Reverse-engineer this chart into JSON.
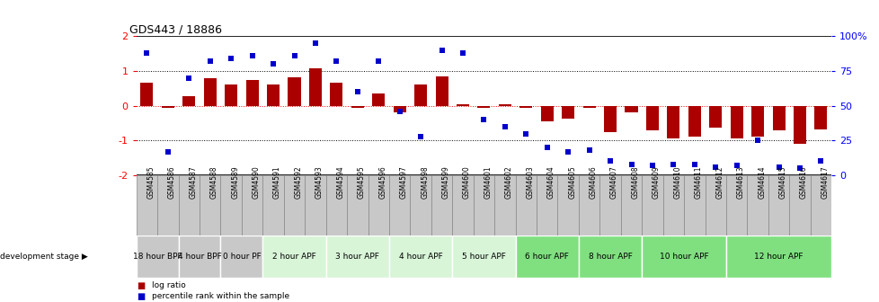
{
  "title": "GDS443 / 18886",
  "samples": [
    "GSM4585",
    "GSM4586",
    "GSM4587",
    "GSM4588",
    "GSM4589",
    "GSM4590",
    "GSM4591",
    "GSM4592",
    "GSM4593",
    "GSM4594",
    "GSM4595",
    "GSM4596",
    "GSM4597",
    "GSM4598",
    "GSM4599",
    "GSM4600",
    "GSM4601",
    "GSM4602",
    "GSM4603",
    "GSM4604",
    "GSM4605",
    "GSM4606",
    "GSM4607",
    "GSM4608",
    "GSM4609",
    "GSM4610",
    "GSM4611",
    "GSM4612",
    "GSM4613",
    "GSM4614",
    "GSM4615",
    "GSM4616",
    "GSM4617"
  ],
  "log_ratio": [
    0.65,
    -0.07,
    0.28,
    0.78,
    0.62,
    0.75,
    0.62,
    0.82,
    1.07,
    0.65,
    -0.05,
    0.35,
    -0.18,
    0.6,
    0.85,
    0.04,
    -0.05,
    0.05,
    -0.07,
    -0.45,
    -0.37,
    -0.07,
    -0.75,
    -0.18,
    -0.7,
    -0.95,
    -0.9,
    -0.62,
    -0.95,
    -0.9,
    -0.72,
    -1.1,
    -0.68
  ],
  "percentile": [
    88,
    17,
    70,
    82,
    84,
    86,
    80,
    86,
    95,
    82,
    60,
    82,
    46,
    28,
    90,
    88,
    40,
    35,
    30,
    20,
    17,
    18,
    10,
    8,
    7,
    8,
    8,
    6,
    7,
    25,
    6,
    5,
    10
  ],
  "stages": [
    {
      "label": "18 hour BPF",
      "start": 0,
      "end": 2,
      "color": "#c8c8c8"
    },
    {
      "label": "4 hour BPF",
      "start": 2,
      "end": 4,
      "color": "#c8c8c8"
    },
    {
      "label": "0 hour PF",
      "start": 4,
      "end": 6,
      "color": "#c8c8c8"
    },
    {
      "label": "2 hour APF",
      "start": 6,
      "end": 9,
      "color": "#d8f5d8"
    },
    {
      "label": "3 hour APF",
      "start": 9,
      "end": 12,
      "color": "#d8f5d8"
    },
    {
      "label": "4 hour APF",
      "start": 12,
      "end": 15,
      "color": "#d8f5d8"
    },
    {
      "label": "5 hour APF",
      "start": 15,
      "end": 18,
      "color": "#d8f5d8"
    },
    {
      "label": "6 hour APF",
      "start": 18,
      "end": 21,
      "color": "#80e080"
    },
    {
      "label": "8 hour APF",
      "start": 21,
      "end": 24,
      "color": "#80e080"
    },
    {
      "label": "10 hour APF",
      "start": 24,
      "end": 28,
      "color": "#80e080"
    },
    {
      "label": "12 hour APF",
      "start": 28,
      "end": 33,
      "color": "#80e080"
    }
  ],
  "ylim": [
    -2,
    2
  ],
  "yticks_left": [
    -2,
    -1,
    0,
    1,
    2
  ],
  "yticks_right": [
    0,
    25,
    50,
    75,
    100
  ],
  "bar_color": "#aa0000",
  "dot_color": "#0000cc",
  "bar_width": 0.6,
  "dot_size": 18,
  "background_color": "#ffffff",
  "sample_box_color": "#c8c8c8",
  "sample_box_edge": "#888888"
}
